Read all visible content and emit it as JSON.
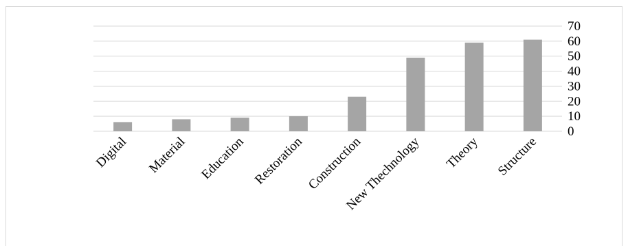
{
  "chart_data": {
    "type": "bar",
    "categories": [
      "Digital",
      "Material",
      "Education",
      "Restoration",
      "Construction",
      "New Thechnology",
      "Theory",
      "Structure"
    ],
    "values": [
      6,
      8,
      9,
      10,
      23,
      49,
      59,
      61
    ],
    "y_ticks": [
      "0",
      "10",
      "20",
      "30",
      "40",
      "50",
      "60",
      "70"
    ],
    "ylim": [
      0,
      70
    ],
    "y_axis_side": "right",
    "grid": true,
    "legend": "none",
    "bar_color": "#a5a5a5",
    "grid_color": "#d9d9d9"
  }
}
